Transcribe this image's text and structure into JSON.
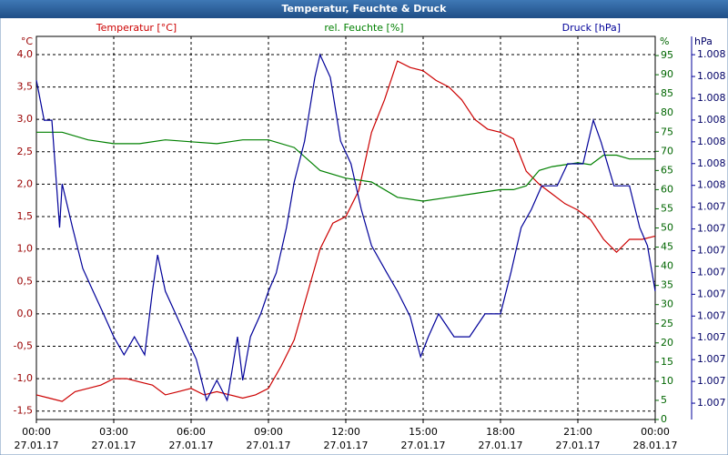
{
  "chart_data": {
    "type": "line",
    "title": "Temperatur, Feuchte & Druck",
    "ylabel": "°C",
    "y2label": "%",
    "y3label": "hPa",
    "xlim": [
      0,
      24
    ],
    "xticks": [
      {
        "value": 0,
        "label": "00:00",
        "date": "27.01.17"
      },
      {
        "value": 3,
        "label": "03:00",
        "date": "27.01.17"
      },
      {
        "value": 6,
        "label": "06:00",
        "date": "27.01.17"
      },
      {
        "value": 9,
        "label": "09:00",
        "date": "27.01.17"
      },
      {
        "value": 12,
        "label": "12:00",
        "date": "27.01.17"
      },
      {
        "value": 15,
        "label": "15:00",
        "date": "27.01.17"
      },
      {
        "value": 18,
        "label": "18:00",
        "date": "27.01.17"
      },
      {
        "value": 21,
        "label": "21:00",
        "date": "27.01.17"
      },
      {
        "value": 24,
        "label": "00:00",
        "date": "28.01.17"
      }
    ],
    "ylim": [
      -1.63,
      4.28
    ],
    "yticks": [
      {
        "value": -1.5,
        "label": "-1,5"
      },
      {
        "value": -1.0,
        "label": "-1,0"
      },
      {
        "value": -0.5,
        "label": "-0,5"
      },
      {
        "value": 0,
        "label": "0,0"
      },
      {
        "value": 0.5,
        "label": "0,5"
      },
      {
        "value": 1.0,
        "label": "1,0"
      },
      {
        "value": 1.5,
        "label": "1,5"
      },
      {
        "value": 2.0,
        "label": "2,0"
      },
      {
        "value": 2.5,
        "label": "2,5"
      },
      {
        "value": 3.0,
        "label": "3,0"
      },
      {
        "value": 3.5,
        "label": "3,5"
      },
      {
        "value": 4.0,
        "label": "4,0"
      }
    ],
    "y2lim": [
      0,
      100
    ],
    "y2ticks": [
      0,
      5,
      10,
      15,
      20,
      25,
      30,
      35,
      40,
      45,
      50,
      55,
      60,
      65,
      70,
      75,
      80,
      85,
      90,
      95
    ],
    "y3lim": [
      1.006425,
      1.008184
    ],
    "y3ticks": [
      {
        "value": 1.0065,
        "label": "1.007"
      },
      {
        "value": 1.0066,
        "label": "1.007"
      },
      {
        "value": 1.0067,
        "label": "1.007"
      },
      {
        "value": 1.0068,
        "label": "1.007"
      },
      {
        "value": 1.0069,
        "label": "1.007"
      },
      {
        "value": 1.007,
        "label": "1.007"
      },
      {
        "value": 1.0071,
        "label": "1.007"
      },
      {
        "value": 1.0072,
        "label": "1.007"
      },
      {
        "value": 1.0073,
        "label": "1.007"
      },
      {
        "value": 1.0074,
        "label": "1.007"
      },
      {
        "value": 1.0075,
        "label": "1.008"
      },
      {
        "value": 1.0076,
        "label": "1.008"
      },
      {
        "value": 1.0077,
        "label": "1.008"
      },
      {
        "value": 1.0078,
        "label": "1.008"
      },
      {
        "value": 1.0079,
        "label": "1.008"
      },
      {
        "value": 1.008,
        "label": "1.008"
      },
      {
        "value": 1.0081,
        "label": "1.008"
      }
    ],
    "grid": true,
    "series": [
      {
        "name": "Temperatur [°C]",
        "color": "#cc0000",
        "axis": "y",
        "x": [
          0,
          0.5,
          1,
          1.5,
          2,
          2.5,
          3,
          3.5,
          4,
          4.5,
          5,
          5.5,
          6,
          6.5,
          7,
          7.5,
          8,
          8.5,
          9,
          9.5,
          10,
          10.5,
          11,
          11.5,
          12,
          12.5,
          13,
          13.5,
          14,
          14.5,
          15,
          15.5,
          16,
          16.5,
          17,
          17.5,
          18,
          18.5,
          19,
          19.5,
          20,
          20.5,
          21,
          21.5,
          22,
          22.5,
          23,
          23.5,
          24
        ],
        "values": [
          -1.25,
          -1.3,
          -1.35,
          -1.2,
          -1.15,
          -1.1,
          -1.0,
          -1.0,
          -1.05,
          -1.1,
          -1.25,
          -1.2,
          -1.15,
          -1.25,
          -1.2,
          -1.25,
          -1.3,
          -1.25,
          -1.15,
          -0.8,
          -0.4,
          0.3,
          1.0,
          1.4,
          1.5,
          1.9,
          2.8,
          3.3,
          3.9,
          3.8,
          3.75,
          3.6,
          3.5,
          3.3,
          3.0,
          2.85,
          2.8,
          2.7,
          2.2,
          2.0,
          1.85,
          1.7,
          1.6,
          1.45,
          1.15,
          0.95,
          1.15,
          1.15,
          1.2
        ]
      },
      {
        "name": "rel. Feuchte [%]",
        "color": "#008000",
        "axis": "y2",
        "x": [
          0,
          1,
          2,
          3,
          4,
          5,
          6,
          7,
          8,
          9,
          10,
          11,
          12,
          13,
          14,
          15,
          16,
          17,
          18,
          18.5,
          19,
          19.5,
          20,
          21,
          21.5,
          22,
          22.5,
          23,
          24
        ],
        "values": [
          75,
          75,
          73,
          72,
          72,
          73,
          72.5,
          72,
          73,
          73,
          71,
          65,
          63,
          62,
          58,
          57,
          58,
          59,
          60,
          60,
          61,
          65,
          66,
          67,
          66.5,
          69,
          69,
          68,
          68
        ]
      },
      {
        "name": "Druck [hPa]",
        "color": "#000099",
        "axis": "y3",
        "x": [
          0,
          0.3,
          0.6,
          0.9,
          1.0,
          1.4,
          1.8,
          2.2,
          2.6,
          3.0,
          3.4,
          3.8,
          4.2,
          4.5,
          4.7,
          5.0,
          5.4,
          5.8,
          6.2,
          6.6,
          7.0,
          7.4,
          7.8,
          8.0,
          8.3,
          8.7,
          9.0,
          9.3,
          9.7,
          10.0,
          10.4,
          10.8,
          11.0,
          11.4,
          11.8,
          12.2,
          12.6,
          13.0,
          13.6,
          14.0,
          14.5,
          14.9,
          15.2,
          15.6,
          16.2,
          16.8,
          17.4,
          18.0,
          18.4,
          18.8,
          19.2,
          19.6,
          20.2,
          20.6,
          21.2,
          21.6,
          21.9,
          22.4,
          23.0,
          23.4,
          23.7,
          24
        ],
        "values": [
          1.007983,
          1.007799,
          1.007799,
          1.007306,
          1.007507,
          1.007306,
          1.007118,
          1.007014,
          1.00691,
          1.006805,
          1.006722,
          1.006805,
          1.006722,
          1.007014,
          1.007181,
          1.007014,
          1.00691,
          1.006805,
          1.006701,
          1.006513,
          1.006605,
          1.006513,
          1.006805,
          1.006605,
          1.006805,
          1.00691,
          1.007014,
          1.007097,
          1.007306,
          1.007515,
          1.007703,
          1.007996,
          1.0081,
          1.007996,
          1.007703,
          1.007599,
          1.00739,
          1.007223,
          1.007097,
          1.007014,
          1.006897,
          1.006713,
          1.006805,
          1.00691,
          1.006805,
          1.006805,
          1.00691,
          1.00691,
          1.007097,
          1.007306,
          1.00739,
          1.007498,
          1.007498,
          1.007599,
          1.007599,
          1.007799,
          1.007699,
          1.007498,
          1.007498,
          1.007306,
          1.007223,
          1.007014
        ]
      }
    ]
  }
}
